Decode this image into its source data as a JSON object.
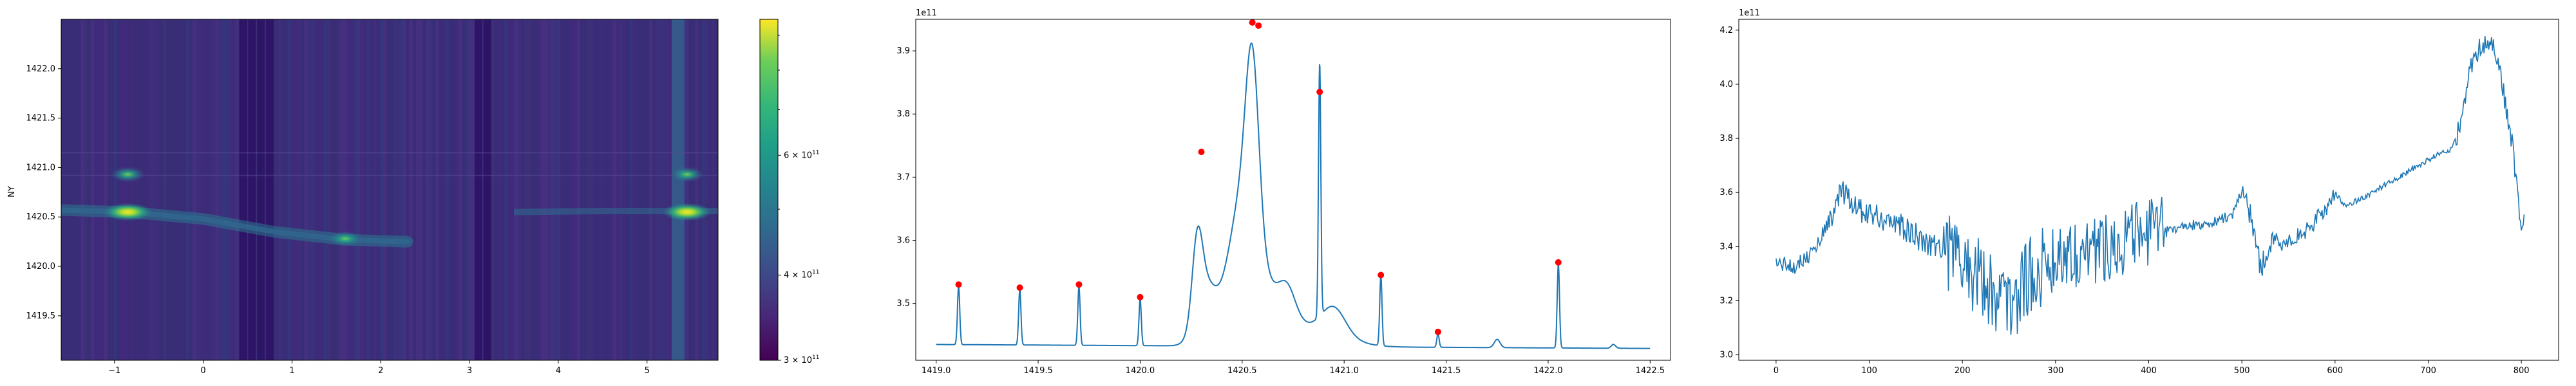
{
  "chart_data": [
    {
      "type": "heatmap",
      "xlabel": "",
      "ylabel": "NY",
      "xlim": [
        -1.6,
        5.8
      ],
      "ylim": [
        1419.05,
        1422.5
      ],
      "xticks": [
        -1,
        0,
        1,
        2,
        3,
        4,
        5
      ],
      "yticks": [
        1419.5,
        1420.0,
        1420.5,
        1421.0,
        1421.5,
        1422.0
      ],
      "ytick_labels": [
        "1419.5",
        "1420.0",
        "1420.5",
        "1421.0",
        "1421.5",
        "1422.0"
      ],
      "colormap": "viridis",
      "colorbar": {
        "scale": "log",
        "range": [
          300000000000.0,
          950000000000.0
        ],
        "ticks": [
          300000000000.0,
          400000000000.0,
          600000000000.0
        ],
        "tick_labels": [
          "3 × 10",
          "4 × 10",
          "6 × 10"
        ],
        "tick_exponent": "11"
      },
      "features": [
        {
          "x": -0.85,
          "y": 1420.55,
          "intensity": 1.0
        },
        {
          "x": -0.85,
          "y": 1420.93,
          "intensity": 0.6
        },
        {
          "x": 1.6,
          "y": 1420.28,
          "intensity": 0.75
        },
        {
          "x": 5.45,
          "y": 1420.55,
          "intensity": 1.0
        },
        {
          "x": 5.45,
          "y": 1420.93,
          "intensity": 0.6
        }
      ],
      "bright_columns": [
        5.35
      ],
      "dark_columns": [
        0.45,
        0.55,
        0.65,
        0.75,
        3.1,
        3.2
      ]
    },
    {
      "type": "line",
      "offset_text": "1e11",
      "xlim": [
        1418.9,
        1422.6
      ],
      "ylim": [
        3.41,
        3.95
      ],
      "xticks": [
        1419.0,
        1419.5,
        1420.0,
        1420.5,
        1421.0,
        1421.5,
        1422.0,
        1422.5
      ],
      "xtick_labels": [
        "1419.0",
        "1419.5",
        "1420.0",
        "1420.5",
        "1421.0",
        "1421.5",
        "1422.0",
        "1422.5"
      ],
      "yticks": [
        3.5,
        3.6,
        3.7,
        3.8,
        3.9
      ],
      "ytick_labels": [
        "3.5",
        "3.6",
        "3.7",
        "3.8",
        "3.9"
      ],
      "line_color": "#1f77b4",
      "marker_color": "#ff0000",
      "baseline": 3.435,
      "spikes": [
        {
          "x": 1419.11,
          "y": 3.53
        },
        {
          "x": 1419.41,
          "y": 3.525
        },
        {
          "x": 1419.7,
          "y": 3.53
        },
        {
          "x": 1420.0,
          "y": 3.51
        },
        {
          "x": 1420.88,
          "y": 3.835
        },
        {
          "x": 1421.18,
          "y": 3.545
        },
        {
          "x": 1421.46,
          "y": 3.455
        },
        {
          "x": 1422.05,
          "y": 3.565
        }
      ],
      "peaks": [
        {
          "x": 1419.11,
          "y": 3.53
        },
        {
          "x": 1419.41,
          "y": 3.525
        },
        {
          "x": 1419.7,
          "y": 3.53
        },
        {
          "x": 1420.0,
          "y": 3.51
        },
        {
          "x": 1420.3,
          "y": 3.74
        },
        {
          "x": 1420.55,
          "y": 3.945
        },
        {
          "x": 1420.58,
          "y": 3.94
        },
        {
          "x": 1420.88,
          "y": 3.835
        },
        {
          "x": 1421.18,
          "y": 3.545
        },
        {
          "x": 1421.46,
          "y": 3.455
        },
        {
          "x": 1422.05,
          "y": 3.565
        }
      ]
    },
    {
      "type": "line",
      "offset_text": "1e11",
      "xlim": [
        -40,
        840
      ],
      "ylim": [
        2.98,
        4.24
      ],
      "xticks": [
        0,
        100,
        200,
        300,
        400,
        500,
        600,
        700,
        800
      ],
      "xtick_labels": [
        "0",
        "100",
        "200",
        "300",
        "400",
        "500",
        "600",
        "700",
        "800"
      ],
      "yticks": [
        3.0,
        3.2,
        3.4,
        3.6,
        3.8,
        4.0,
        4.2
      ],
      "ytick_labels": [
        "3.0",
        "3.2",
        "3.4",
        "3.6",
        "3.8",
        "4.0",
        "4.2"
      ],
      "line_color": "#1f77b4",
      "envelope": [
        [
          0,
          3.34
        ],
        [
          20,
          3.33
        ],
        [
          40,
          3.38
        ],
        [
          60,
          3.52
        ],
        [
          70,
          3.6
        ],
        [
          80,
          3.56
        ],
        [
          100,
          3.52
        ],
        [
          120,
          3.5
        ],
        [
          140,
          3.46
        ],
        [
          160,
          3.42
        ],
        [
          180,
          3.4
        ],
        [
          200,
          3.34
        ],
        [
          220,
          3.28
        ],
        [
          240,
          3.22
        ],
        [
          250,
          3.18
        ],
        [
          270,
          3.28
        ],
        [
          290,
          3.34
        ],
        [
          310,
          3.38
        ],
        [
          330,
          3.38
        ],
        [
          350,
          3.4
        ],
        [
          370,
          3.42
        ],
        [
          390,
          3.44
        ],
        [
          410,
          3.46
        ],
        [
          430,
          3.47
        ],
        [
          450,
          3.48
        ],
        [
          470,
          3.49
        ],
        [
          490,
          3.52
        ],
        [
          500,
          3.6
        ],
        [
          510,
          3.52
        ],
        [
          520,
          3.32
        ],
        [
          530,
          3.4
        ],
        [
          550,
          3.42
        ],
        [
          570,
          3.46
        ],
        [
          590,
          3.54
        ],
        [
          600,
          3.6
        ],
        [
          610,
          3.55
        ],
        [
          630,
          3.58
        ],
        [
          650,
          3.62
        ],
        [
          670,
          3.66
        ],
        [
          690,
          3.7
        ],
        [
          710,
          3.74
        ],
        [
          725,
          3.76
        ],
        [
          735,
          3.85
        ],
        [
          745,
          4.05
        ],
        [
          755,
          4.14
        ],
        [
          765,
          4.16
        ],
        [
          775,
          4.1
        ],
        [
          782,
          3.95
        ],
        [
          790,
          3.78
        ],
        [
          796,
          3.6
        ],
        [
          800,
          3.45
        ],
        [
          803,
          3.52
        ]
      ],
      "noise_ranges": [
        [
          0,
          60,
          0.03
        ],
        [
          60,
          180,
          0.05
        ],
        [
          180,
          300,
          0.15
        ],
        [
          300,
          420,
          0.13
        ],
        [
          420,
          500,
          0.02
        ],
        [
          500,
          540,
          0.05
        ],
        [
          540,
          600,
          0.03
        ],
        [
          600,
          730,
          0.01
        ],
        [
          730,
          800,
          0.04
        ]
      ]
    }
  ]
}
